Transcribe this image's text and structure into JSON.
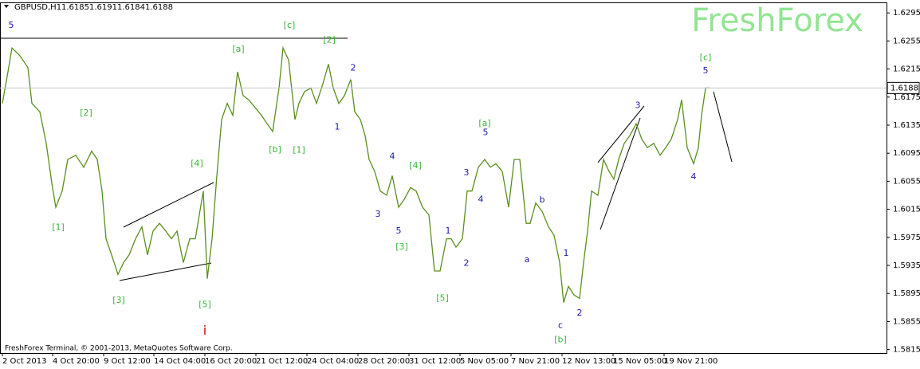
{
  "header": {
    "symbol": "GBPUSD,H1",
    "ohlc": [
      1.6185,
      1.6191,
      1.6184,
      1.6188
    ]
  },
  "watermark": "FreshForex",
  "footer": "FreshForex Terminal, © 2001-2013, MetaQuotes Software Corp.",
  "chart_data": {
    "type": "line",
    "series": [
      {
        "name": "GBPUSD,H1",
        "color": "#5a8f1e",
        "x": [
          0,
          7,
          12,
          22,
          32,
          37,
          47,
          55,
          62,
          67,
          75,
          82,
          92,
          102,
          112,
          119,
          125,
          130,
          137,
          145,
          152,
          159,
          167,
          175,
          182,
          189,
          197,
          205,
          212,
          219,
          227,
          235,
          242,
          247,
          252,
          257,
          263,
          269,
          275,
          282,
          289,
          295,
          302,
          309,
          317,
          325,
          332,
          339,
          347,
          352,
          359,
          367,
          372,
          379,
          387,
          394,
          402,
          409,
          415,
          422,
          429,
          437,
          442,
          449,
          455,
          460,
          467,
          474,
          482,
          489,
          497,
          504,
          512,
          519,
          527,
          535,
          542,
          549,
          557,
          563,
          569,
          577,
          583,
          589,
          597,
          605,
          612,
          619,
          627,
          635,
          642,
          649,
          657,
          662,
          669,
          677,
          685,
          692,
          699,
          704,
          710,
          717,
          724,
          729,
          734,
          739,
          747,
          754,
          761,
          767,
          773,
          780,
          787,
          795,
          802,
          809,
          817,
          825,
          832,
          839,
          847,
          852,
          859,
          867,
          873,
          877,
          882,
          887
        ],
        "values": [
          1.6166,
          1.6211,
          1.6245,
          1.6234,
          1.6217,
          1.6166,
          1.6154,
          1.6109,
          1.6052,
          1.6018,
          1.6041,
          1.6086,
          1.6092,
          1.6075,
          1.6098,
          1.6086,
          1.6041,
          1.5973,
          1.595,
          1.5922,
          1.5939,
          1.595,
          1.5973,
          1.599,
          1.595,
          1.5984,
          1.5995,
          1.5984,
          1.5973,
          1.5984,
          1.5939,
          1.5973,
          1.5973,
          1.6007,
          1.6041,
          1.5916,
          1.5973,
          1.6063,
          1.6143,
          1.6166,
          1.6149,
          1.6211,
          1.6177,
          1.6171,
          1.616,
          1.6149,
          1.6137,
          1.6126,
          1.6188,
          1.6245,
          1.6228,
          1.6143,
          1.6166,
          1.6183,
          1.6188,
          1.6166,
          1.6194,
          1.6222,
          1.6188,
          1.6166,
          1.6177,
          1.62,
          1.6154,
          1.6143,
          1.612,
          1.6086,
          1.6069,
          1.6041,
          1.6035,
          1.6063,
          1.6018,
          1.6029,
          1.6046,
          1.6041,
          1.6018,
          1.6007,
          1.5927,
          1.5927,
          1.5973,
          1.5973,
          1.5961,
          1.5973,
          1.6041,
          1.6041,
          1.6075,
          1.6086,
          1.6075,
          1.608,
          1.6069,
          1.6018,
          1.6086,
          1.6086,
          1.5995,
          1.5995,
          1.6024,
          1.6012,
          1.599,
          1.5978,
          1.5939,
          1.5882,
          1.5905,
          1.5893,
          1.5888,
          1.5939,
          1.5984,
          1.6041,
          1.6035,
          1.6086,
          1.6069,
          1.6058,
          1.6086,
          1.6109,
          1.612,
          1.6137,
          1.6115,
          1.6103,
          1.6109,
          1.6092,
          1.6103,
          1.6115,
          1.6143,
          1.6171,
          1.6103,
          1.608,
          1.6103,
          1.6149,
          1.6188,
          1.6188
        ]
      }
    ],
    "xlim": [
      -3,
      1109
    ],
    "ylim": [
      1.581,
      1.631
    ],
    "xticks": [
      {
        "value": 0,
        "label": "2 Oct 2013"
      },
      {
        "value": 63,
        "label": "4 Oct 20:00"
      },
      {
        "value": 127,
        "label": "9 Oct 12:00"
      },
      {
        "value": 190,
        "label": "14 Oct 04:00"
      },
      {
        "value": 254,
        "label": "16 Oct 20:00"
      },
      {
        "value": 318,
        "label": "21 Oct 12:00"
      },
      {
        "value": 382,
        "label": "24 Oct 04:00"
      },
      {
        "value": 446,
        "label": "28 Oct 20:00"
      },
      {
        "value": 510,
        "label": "31 Oct 12:00"
      },
      {
        "value": 574,
        "label": "5 Nov 05:00"
      },
      {
        "value": 638,
        "label": "7 Nov 21:00"
      },
      {
        "value": 702,
        "label": "12 Nov 13:00"
      },
      {
        "value": 766,
        "label": "15 Nov 05:00"
      },
      {
        "value": 830,
        "label": "19 Nov 21:00"
      }
    ],
    "yticks": [
      1.6295,
      1.6255,
      1.6215,
      1.6175,
      1.6135,
      1.6095,
      1.6055,
      1.6015,
      1.5975,
      1.5935,
      1.5895,
      1.5855,
      1.5815
    ],
    "annotations": [
      {
        "text": "5",
        "x": 11,
        "y": 1.6277,
        "color": "#1a1aa8"
      },
      {
        "text": "[c]",
        "x": 360,
        "y": 1.6277,
        "color": "#3cb43c"
      },
      {
        "text": "[2]",
        "x": 410,
        "y": 1.6256,
        "color": "#3cb43c"
      },
      {
        "text": "[a]",
        "x": 296,
        "y": 1.6243,
        "color": "#3cb43c"
      },
      {
        "text": "[c]",
        "x": 882,
        "y": 1.6231,
        "color": "#3cb43c"
      },
      {
        "text": "5",
        "x": 882,
        "y": 1.6212,
        "color": "#1a1aa8"
      },
      {
        "text": "[2]",
        "x": 105,
        "y": 1.6152,
        "color": "#3cb43c"
      },
      {
        "text": "2",
        "x": 440,
        "y": 1.6216,
        "color": "#1a1aa8"
      },
      {
        "text": "1",
        "x": 420,
        "y": 1.6132,
        "color": "#1a1aa8"
      },
      {
        "text": "[b]",
        "x": 342,
        "y": 1.61,
        "color": "#3cb43c"
      },
      {
        "text": "[1]",
        "x": 372,
        "y": 1.6099,
        "color": "#3cb43c"
      },
      {
        "text": "[a]",
        "x": 605,
        "y": 1.6137,
        "color": "#3cb43c"
      },
      {
        "text": "5",
        "x": 606,
        "y": 1.6124,
        "color": "#1a1aa8"
      },
      {
        "text": "3",
        "x": 797,
        "y": 1.6163,
        "color": "#1a1aa8"
      },
      {
        "text": "4",
        "x": 489,
        "y": 1.609,
        "color": "#1a1aa8"
      },
      {
        "text": "[4]",
        "x": 518,
        "y": 1.6077,
        "color": "#3cb43c"
      },
      {
        "text": "[4]",
        "x": 244,
        "y": 1.608,
        "color": "#3cb43c"
      },
      {
        "text": "3",
        "x": 582,
        "y": 1.6067,
        "color": "#1a1aa8"
      },
      {
        "text": "4",
        "x": 600,
        "y": 1.6029,
        "color": "#1a1aa8"
      },
      {
        "text": "4",
        "x": 867,
        "y": 1.6061,
        "color": "#1a1aa8"
      },
      {
        "text": "b",
        "x": 677,
        "y": 1.6028,
        "color": "#1a1aa8"
      },
      {
        "text": "3",
        "x": 471,
        "y": 1.6008,
        "color": "#1a1aa8"
      },
      {
        "text": "[1]",
        "x": 70,
        "y": 1.5989,
        "color": "#3cb43c"
      },
      {
        "text": "5",
        "x": 497,
        "y": 1.5984,
        "color": "#1a1aa8"
      },
      {
        "text": "1",
        "x": 559,
        "y": 1.5984,
        "color": "#1a1aa8"
      },
      {
        "text": "[3]",
        "x": 501,
        "y": 1.5961,
        "color": "#3cb43c"
      },
      {
        "text": "a",
        "x": 658,
        "y": 1.5943,
        "color": "#1a1aa8"
      },
      {
        "text": "1",
        "x": 707,
        "y": 1.5952,
        "color": "#1a1aa8"
      },
      {
        "text": "2",
        "x": 582,
        "y": 1.5938,
        "color": "#1a1aa8"
      },
      {
        "text": "[3]",
        "x": 146,
        "y": 1.5885,
        "color": "#3cb43c"
      },
      {
        "text": "[5]",
        "x": 254,
        "y": 1.5879,
        "color": "#3cb43c"
      },
      {
        "text": "[5]",
        "x": 552,
        "y": 1.5888,
        "color": "#3cb43c"
      },
      {
        "text": "2",
        "x": 724,
        "y": 1.5867,
        "color": "#1a1aa8"
      },
      {
        "text": "c",
        "x": 700,
        "y": 1.5849,
        "color": "#1a1aa8"
      },
      {
        "text": "[b]",
        "x": 700,
        "y": 1.5829,
        "color": "#3cb43c"
      },
      {
        "text": "i",
        "x": 254,
        "y": 1.5841,
        "color": "#e00000"
      }
    ]
  }
}
